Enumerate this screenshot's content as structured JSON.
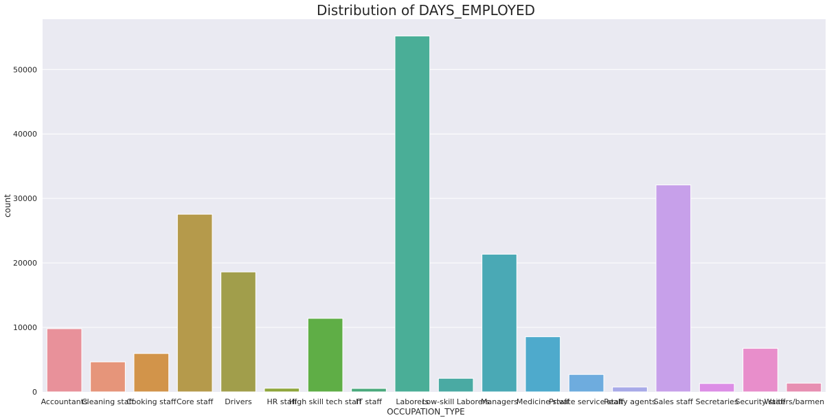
{
  "chart_data": {
    "type": "bar",
    "title": "Distribution of DAYS_EMPLOYED",
    "xlabel": "OCCUPATION_TYPE",
    "ylabel": "count",
    "ylim": [
      0,
      57800
    ],
    "yticks": [
      0,
      10000,
      20000,
      30000,
      40000,
      50000
    ],
    "grid": true,
    "categories": [
      "Accountants",
      "Cleaning staff",
      "Cooking staff",
      "Core staff",
      "Drivers",
      "HR staff",
      "High skill tech staff",
      "IT staff",
      "Laborers",
      "Low-skill Laborers",
      "Managers",
      "Medicine staff",
      "Private service staff",
      "Realty agents",
      "Sales staff",
      "Secretaries",
      "Security staff",
      "Waiters/barmen staff"
    ],
    "values": [
      9800,
      4650,
      5950,
      27550,
      18600,
      560,
      11400,
      530,
      55200,
      2100,
      21350,
      8550,
      2700,
      750,
      32100,
      1300,
      6750,
      1350
    ],
    "colors": [
      "#e8919a",
      "#e6957a",
      "#d2944a",
      "#b59a4b",
      "#a19e4b",
      "#8fa63d",
      "#5fae46",
      "#4aa97c",
      "#4aae97",
      "#4aaaa3",
      "#4aa9b5",
      "#4eaacc",
      "#6eacde",
      "#a8aae8",
      "#c7a0ea",
      "#dc8ee6",
      "#e88ecb",
      "#e78fb2"
    ]
  }
}
